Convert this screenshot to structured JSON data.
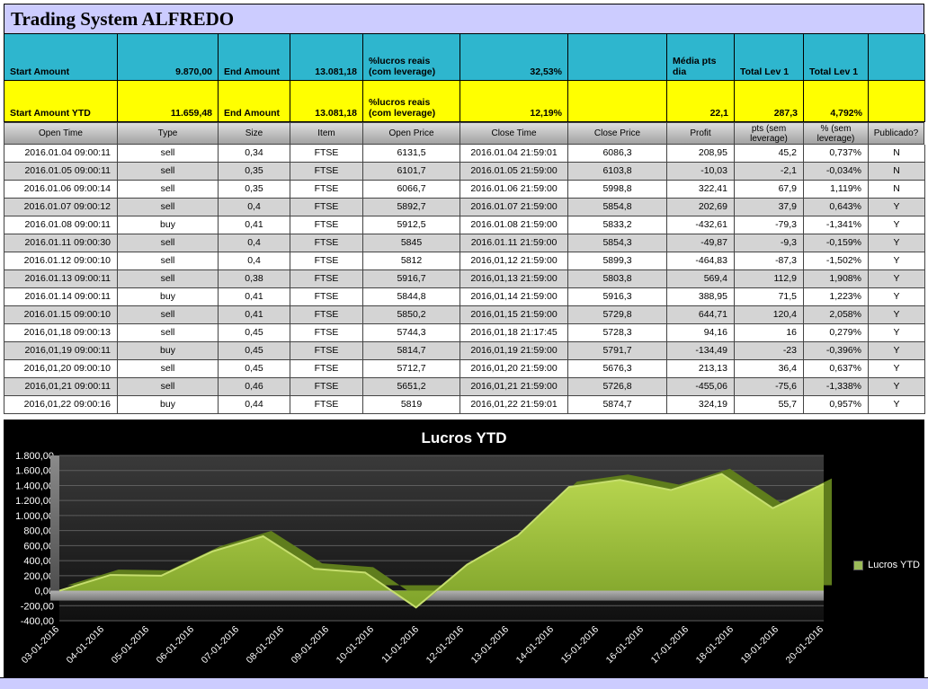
{
  "title": "Trading System ALFREDO",
  "colors": {
    "lavender": "#ccccff",
    "cyan": "#2eb6ce",
    "yellow": "#ffff00",
    "area_green": "#9bbb59"
  },
  "summary": {
    "row1": [
      "Start Amount",
      "9.870,00",
      "End Amount",
      "13.081,18",
      "%lucros reais (com leverage)",
      "32,53%",
      "",
      "Média pts dia",
      "Total Lev 1",
      "Total Lev 1",
      ""
    ],
    "row2": [
      "Start Amount YTD",
      "11.659,48",
      "End Amount",
      "13.081,18",
      "%lucros reais (com leverage)",
      "12,19%",
      "",
      "22,1",
      "287,3",
      "4,792%",
      ""
    ]
  },
  "table": {
    "headers": [
      "Open Time",
      "Type",
      "Size",
      "Item",
      "Open Price",
      "Close Time",
      "Close Price",
      "Profit",
      "pts (sem leverage)",
      "% (sem leverage)",
      "Publicado?"
    ],
    "rows": [
      [
        "2016.01.04 09:00:11",
        "sell",
        "0,34",
        "FTSE",
        "6131,5",
        "2016.01.04 21:59:01",
        "6086,3",
        "208,95",
        "45,2",
        "0,737%",
        "N"
      ],
      [
        "2016.01.05 09:00:11",
        "sell",
        "0,35",
        "FTSE",
        "6101,7",
        "2016.01.05 21:59:00",
        "6103,8",
        "-10,03",
        "-2,1",
        "-0,034%",
        "N"
      ],
      [
        "2016.01.06 09:00:14",
        "sell",
        "0,35",
        "FTSE",
        "6066,7",
        "2016.01.06 21:59:00",
        "5998,8",
        "322,41",
        "67,9",
        "1,119%",
        "N"
      ],
      [
        "2016.01.07 09:00:12",
        "sell",
        "0,4",
        "FTSE",
        "5892,7",
        "2016.01.07 21:59:00",
        "5854,8",
        "202,69",
        "37,9",
        "0,643%",
        "Y"
      ],
      [
        "2016.01.08 09:00:11",
        "buy",
        "0,41",
        "FTSE",
        "5912,5",
        "2016.01.08 21:59:00",
        "5833,2",
        "-432,61",
        "-79,3",
        "-1,341%",
        "Y"
      ],
      [
        "2016.01.11 09:00:30",
        "sell",
        "0,4",
        "FTSE",
        "5845",
        "2016.01.11 21:59:00",
        "5854,3",
        "-49,87",
        "-9,3",
        "-0,159%",
        "Y"
      ],
      [
        "2016.01.12 09:00:10",
        "sell",
        "0,4",
        "FTSE",
        "5812",
        "2016,01,12 21:59:00",
        "5899,3",
        "-464,83",
        "-87,3",
        "-1,502%",
        "Y"
      ],
      [
        "2016.01.13 09:00:11",
        "sell",
        "0,38",
        "FTSE",
        "5916,7",
        "2016,01,13 21:59:00",
        "5803,8",
        "569,4",
        "112,9",
        "1,908%",
        "Y"
      ],
      [
        "2016.01.14 09:00:11",
        "buy",
        "0,41",
        "FTSE",
        "5844,8",
        "2016,01,14 21:59:00",
        "5916,3",
        "388,95",
        "71,5",
        "1,223%",
        "Y"
      ],
      [
        "2016.01.15 09:00:10",
        "sell",
        "0,41",
        "FTSE",
        "5850,2",
        "2016,01,15 21:59:00",
        "5729,8",
        "644,71",
        "120,4",
        "2,058%",
        "Y"
      ],
      [
        "2016,01,18 09:00:13",
        "sell",
        "0,45",
        "FTSE",
        "5744,3",
        "2016,01,18 21:17:45",
        "5728,3",
        "94,16",
        "16",
        "0,279%",
        "Y"
      ],
      [
        "2016,01,19 09:00:11",
        "buy",
        "0,45",
        "FTSE",
        "5814,7",
        "2016,01,19 21:59:00",
        "5791,7",
        "-134,49",
        "-23",
        "-0,396%",
        "Y"
      ],
      [
        "2016,01,20 09:00:10",
        "sell",
        "0,45",
        "FTSE",
        "5712,7",
        "2016,01,20 21:59:00",
        "5676,3",
        "213,13",
        "36,4",
        "0,637%",
        "Y"
      ],
      [
        "2016,01,21 09:00:11",
        "sell",
        "0,46",
        "FTSE",
        "5651,2",
        "2016,01,21 21:59:00",
        "5726,8",
        "-455,06",
        "-75,6",
        "-1,338%",
        "Y"
      ],
      [
        "2016,01,22 09:00:16",
        "buy",
        "0,44",
        "FTSE",
        "5819",
        "2016,01,22 21:59:01",
        "5874,7",
        "324,19",
        "55,7",
        "0,957%",
        "Y"
      ]
    ]
  },
  "chart_data": {
    "type": "area",
    "title": "Lucros YTD",
    "legend_label": "Lucros YTD",
    "legend_position": "right",
    "grid": true,
    "ylim": [
      -400,
      1800
    ],
    "y_tick_step": 200,
    "y_tick_labels": [
      "1.800,00",
      "1.600,00",
      "1.400,00",
      "1.200,00",
      "1.000,00",
      "800,00",
      "600,00",
      "400,00",
      "200,00",
      "0,00",
      "-200,00",
      "-400,00"
    ],
    "x_tick_labels": [
      "03-01-2016",
      "04-01-2016",
      "05-01-2016",
      "06-01-2016",
      "07-01-2016",
      "08-01-2016",
      "09-01-2016",
      "10-01-2016",
      "11-01-2016",
      "12-01-2016",
      "13-01-2016",
      "14-01-2016",
      "15-01-2016",
      "16-01-2016",
      "17-01-2016",
      "18-01-2016",
      "19-01-2016",
      "20-01-2016"
    ],
    "series": [
      {
        "name": "Lucros YTD",
        "values": [
          0,
          208.95,
          198.92,
          521.33,
          724.02,
          291.41,
          241.54,
          -223.29,
          346.11,
          735.06,
          1379.77,
          1473.93,
          1339.44,
          1552.57,
          1097.51,
          1421.7
        ]
      }
    ]
  }
}
